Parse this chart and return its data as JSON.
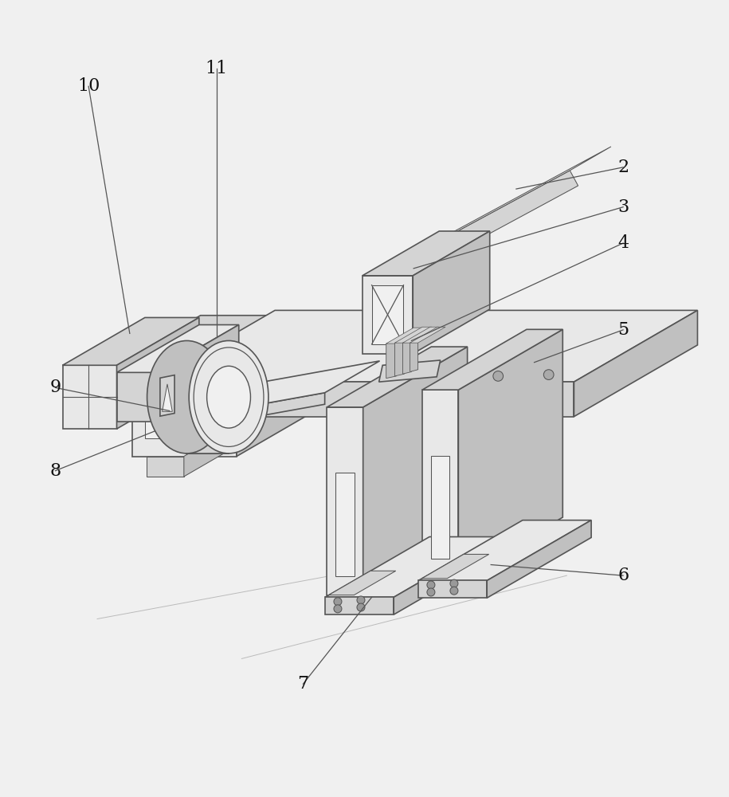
{
  "bg_color": "#f0f0f0",
  "lc": "#555555",
  "lw": 1.2,
  "lw_thin": 0.75,
  "fl": "#e8e8e8",
  "fm": "#d4d4d4",
  "fd": "#c0c0c0",
  "label_fontsize": 16,
  "leader_lw": 0.9,
  "leaders": {
    "10": {
      "lpos": [
        0.118,
        0.932
      ],
      "tpos": [
        0.175,
        0.59
      ]
    },
    "11": {
      "lpos": [
        0.295,
        0.957
      ],
      "tpos": [
        0.295,
        0.585
      ]
    },
    "9": {
      "lpos": [
        0.072,
        0.515
      ],
      "tpos": [
        0.23,
        0.483
      ]
    },
    "8": {
      "lpos": [
        0.072,
        0.4
      ],
      "tpos": [
        0.21,
        0.455
      ]
    },
    "2": {
      "lpos": [
        0.858,
        0.82
      ],
      "tpos": [
        0.71,
        0.79
      ]
    },
    "3": {
      "lpos": [
        0.858,
        0.765
      ],
      "tpos": [
        0.568,
        0.68
      ]
    },
    "4": {
      "lpos": [
        0.858,
        0.715
      ],
      "tpos": [
        0.565,
        0.58
      ]
    },
    "5": {
      "lpos": [
        0.858,
        0.595
      ],
      "tpos": [
        0.735,
        0.55
      ]
    },
    "6": {
      "lpos": [
        0.858,
        0.255
      ],
      "tpos": [
        0.675,
        0.27
      ]
    },
    "7": {
      "lpos": [
        0.415,
        0.105
      ],
      "tpos": [
        0.51,
        0.225
      ]
    }
  }
}
